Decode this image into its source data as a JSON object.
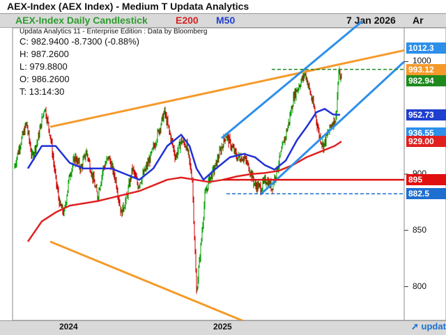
{
  "window": {
    "title": "AEX-Index (AEX Index) - Medium T  Updata Analytics"
  },
  "header": {
    "chart_name": "AEX-Index Daily Candlestick",
    "e200_label": "E200",
    "m50_label": "M50",
    "date": "7 Jan 2026",
    "ar_label": "Ar"
  },
  "attribution": "Updata Analytics 11 - Enterprise Edition : Data by Bloomberg",
  "ohlc": {
    "close": "C: 982.9400  -8.7300 (-0.88%)",
    "high": "H: 987.2600",
    "low": "L: 979.8800",
    "open": "O: 986.2600",
    "time": "T: 13:14:30"
  },
  "logo_text": "updata",
  "colors": {
    "candle_up": "#00a000",
    "candle_down": "#cc0000",
    "ema200": "#e02020",
    "ma50": "#2030d8",
    "trendline_orange": "#f59a2a",
    "channel_blue": "#2d8fea",
    "support_red": "#e01010",
    "dashed_green": "#1e8a1e",
    "dashed_blue": "#1e6fd0"
  },
  "price_labels": [
    {
      "text": "1012.3",
      "value": 1012.3,
      "bg": "#2d8fea"
    },
    {
      "text": "993.12",
      "value": 993.12,
      "bg": "#f59a2a"
    },
    {
      "text": "982.94",
      "value": 982.94,
      "bg": "#1e8a1e"
    },
    {
      "text": "952.73",
      "value": 952.73,
      "bg": "#1f3fcf"
    },
    {
      "text": "936.55",
      "value": 936.55,
      "bg": "#2d8fea"
    },
    {
      "text": "929.00",
      "value": 929.0,
      "bg": "#e02020"
    },
    {
      "text": "895",
      "value": 895,
      "bg": "#e01010"
    },
    {
      "text": "882.5",
      "value": 882.5,
      "bg": "#1e6fd0"
    }
  ],
  "chart_data": {
    "type": "candlestick",
    "title": "AEX-Index Daily Candlestick",
    "x_labels": [
      "2024",
      "2025"
    ],
    "y_ticks": [
      800,
      850,
      900,
      1000
    ],
    "ylim": [
      770,
      1030
    ],
    "series": [
      {
        "name": "E200"
      },
      {
        "name": "M50"
      }
    ],
    "ohlc_last": {
      "open": 986.26,
      "high": 987.26,
      "low": 979.88,
      "close": 982.94
    },
    "approx_path": [
      [
        0,
        905
      ],
      [
        8,
        925
      ],
      [
        18,
        945
      ],
      [
        26,
        915
      ],
      [
        34,
        930
      ],
      [
        44,
        960
      ],
      [
        52,
        935
      ],
      [
        60,
        895
      ],
      [
        66,
        872
      ],
      [
        72,
        865
      ],
      [
        80,
        900
      ],
      [
        88,
        915
      ],
      [
        96,
        905
      ],
      [
        104,
        920
      ],
      [
        112,
        900
      ],
      [
        120,
        880
      ],
      [
        128,
        905
      ],
      [
        136,
        915
      ],
      [
        146,
        895
      ],
      [
        154,
        865
      ],
      [
        162,
        880
      ],
      [
        170,
        905
      ],
      [
        178,
        890
      ],
      [
        186,
        900
      ],
      [
        196,
        915
      ],
      [
        206,
        935
      ],
      [
        216,
        955
      ],
      [
        224,
        935
      ],
      [
        232,
        915
      ],
      [
        240,
        930
      ],
      [
        248,
        925
      ],
      [
        256,
        895
      ],
      [
        262,
        795
      ],
      [
        268,
        835
      ],
      [
        274,
        880
      ],
      [
        280,
        895
      ],
      [
        288,
        905
      ],
      [
        296,
        920
      ],
      [
        304,
        935
      ],
      [
        312,
        925
      ],
      [
        320,
        915
      ],
      [
        330,
        915
      ],
      [
        338,
        905
      ],
      [
        346,
        890
      ],
      [
        354,
        888
      ],
      [
        362,
        895
      ],
      [
        370,
        888
      ],
      [
        378,
        905
      ],
      [
        386,
        925
      ],
      [
        394,
        945
      ],
      [
        402,
        970
      ],
      [
        410,
        980
      ],
      [
        418,
        990
      ],
      [
        426,
        970
      ],
      [
        432,
        955
      ],
      [
        438,
        935
      ],
      [
        444,
        925
      ],
      [
        450,
        935
      ],
      [
        456,
        945
      ],
      [
        462,
        950
      ],
      [
        466,
        990
      ],
      [
        470,
        983
      ]
    ],
    "ema200_path": [
      [
        20,
        840
      ],
      [
        40,
        858
      ],
      [
        60,
        866
      ],
      [
        80,
        872
      ],
      [
        100,
        874
      ],
      [
        120,
        876
      ],
      [
        140,
        879
      ],
      [
        160,
        882
      ],
      [
        180,
        885
      ],
      [
        200,
        890
      ],
      [
        220,
        895
      ],
      [
        240,
        897
      ],
      [
        260,
        895
      ],
      [
        280,
        893
      ],
      [
        300,
        895
      ],
      [
        320,
        898
      ],
      [
        340,
        900
      ],
      [
        360,
        901
      ],
      [
        380,
        903
      ],
      [
        400,
        908
      ],
      [
        420,
        915
      ],
      [
        440,
        920
      ],
      [
        460,
        925
      ],
      [
        470,
        929
      ]
    ],
    "ma50_path": [
      [
        20,
        905
      ],
      [
        40,
        925
      ],
      [
        60,
        925
      ],
      [
        80,
        910
      ],
      [
        100,
        905
      ],
      [
        120,
        905
      ],
      [
        140,
        905
      ],
      [
        160,
        900
      ],
      [
        180,
        895
      ],
      [
        200,
        905
      ],
      [
        220,
        925
      ],
      [
        240,
        935
      ],
      [
        252,
        925
      ],
      [
        262,
        905
      ],
      [
        272,
        895
      ],
      [
        290,
        905
      ],
      [
        310,
        915
      ],
      [
        330,
        918
      ],
      [
        346,
        915
      ],
      [
        360,
        908
      ],
      [
        374,
        904
      ],
      [
        390,
        912
      ],
      [
        406,
        930
      ],
      [
        420,
        942
      ],
      [
        434,
        955
      ],
      [
        446,
        958
      ],
      [
        458,
        953
      ],
      [
        468,
        952.7
      ]
    ]
  }
}
